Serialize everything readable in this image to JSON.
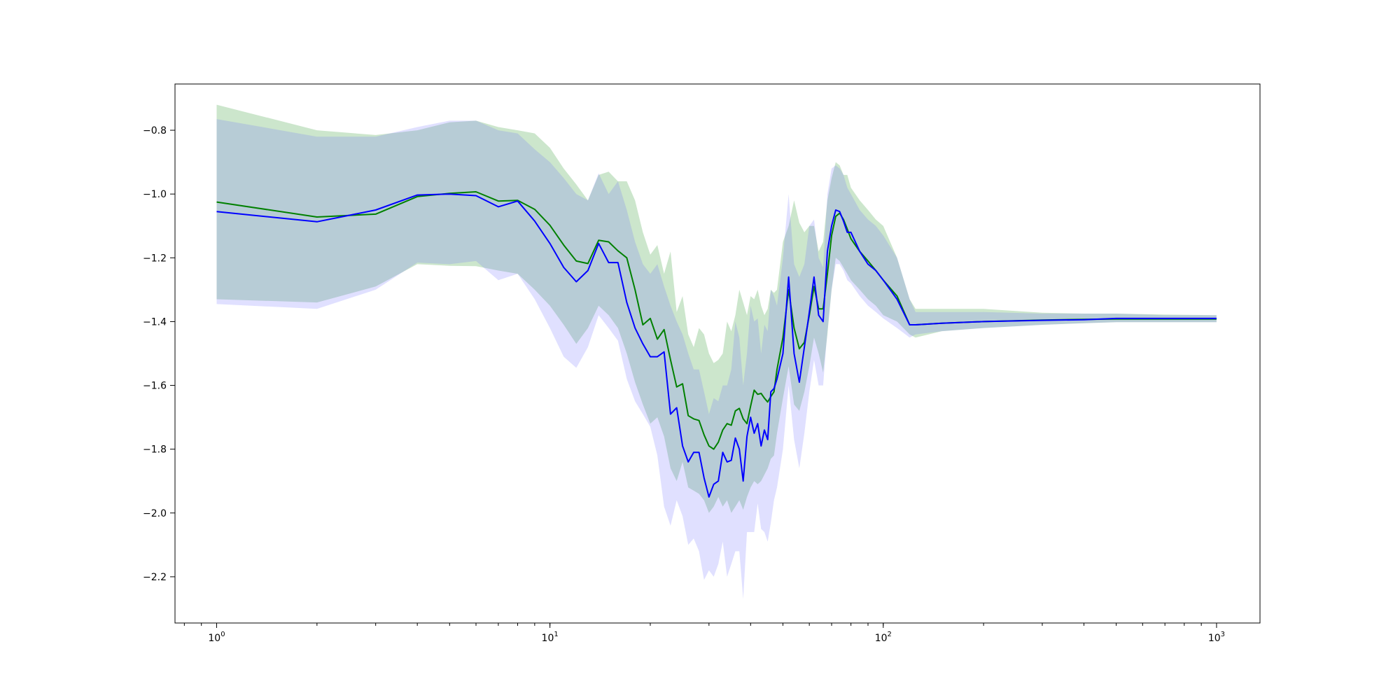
{
  "chart_data": {
    "type": "line",
    "xscale": "log",
    "xlim": [
      0.75,
      1350
    ],
    "ylim": [
      -2.345,
      -0.655
    ],
    "xticks": [
      {
        "value": 1,
        "base": "10",
        "exp": "0"
      },
      {
        "value": 10,
        "base": "10",
        "exp": "1"
      },
      {
        "value": 100,
        "base": "10",
        "exp": "2"
      },
      {
        "value": 1000,
        "base": "10",
        "exp": "3"
      }
    ],
    "yticks": [
      {
        "value": -0.8,
        "label": "−0.8"
      },
      {
        "value": -1.0,
        "label": "−1.0"
      },
      {
        "value": -1.2,
        "label": "−1.2"
      },
      {
        "value": -1.4,
        "label": "−1.4"
      },
      {
        "value": -1.6,
        "label": "−1.6"
      },
      {
        "value": -1.8,
        "label": "−1.8"
      },
      {
        "value": -2.0,
        "label": "−2.0"
      },
      {
        "value": -2.2,
        "label": "−2.2"
      }
    ],
    "grid": false,
    "series": [
      {
        "color": "#008000",
        "band_color": "#008000",
        "x": [
          1,
          2,
          3,
          4,
          5,
          6,
          7,
          8,
          9,
          10,
          11,
          12,
          13,
          14,
          15,
          16,
          17,
          18,
          19,
          20,
          21,
          22,
          23,
          24,
          25,
          26,
          27,
          28,
          29,
          30,
          31,
          32,
          33,
          34,
          35,
          36,
          37,
          38,
          39,
          40,
          41,
          42,
          43,
          44,
          45,
          46,
          47,
          48,
          50,
          52,
          54,
          56,
          58,
          60,
          62,
          64,
          66,
          68,
          70,
          72,
          74,
          76,
          78,
          80,
          85,
          90,
          95,
          100,
          110,
          120,
          125,
          150,
          200,
          300,
          400,
          500,
          700,
          1000
        ],
        "mean": [
          -1.025,
          -1.072,
          -1.063,
          -1.008,
          -0.998,
          -0.993,
          -1.022,
          -1.02,
          -1.048,
          -1.098,
          -1.16,
          -1.21,
          -1.218,
          -1.145,
          -1.15,
          -1.178,
          -1.2,
          -1.3,
          -1.41,
          -1.39,
          -1.455,
          -1.425,
          -1.52,
          -1.605,
          -1.595,
          -1.695,
          -1.705,
          -1.71,
          -1.755,
          -1.79,
          -1.8,
          -1.778,
          -1.74,
          -1.72,
          -1.725,
          -1.68,
          -1.672,
          -1.705,
          -1.72,
          -1.665,
          -1.615,
          -1.628,
          -1.625,
          -1.64,
          -1.652,
          -1.635,
          -1.62,
          -1.55,
          -1.45,
          -1.3,
          -1.42,
          -1.485,
          -1.465,
          -1.38,
          -1.29,
          -1.36,
          -1.36,
          -1.25,
          -1.13,
          -1.07,
          -1.06,
          -1.08,
          -1.11,
          -1.14,
          -1.18,
          -1.21,
          -1.24,
          -1.27,
          -1.32,
          -1.41,
          -1.41,
          -1.405,
          -1.4,
          -1.395,
          -1.393,
          -1.392,
          -1.392,
          -1.392
        ],
        "upper": [
          -0.72,
          -0.8,
          -0.815,
          -0.8,
          -0.775,
          -0.77,
          -0.79,
          -0.8,
          -0.81,
          -0.855,
          -0.92,
          -0.97,
          -1.02,
          -0.94,
          -0.93,
          -0.96,
          -0.96,
          -1.02,
          -1.12,
          -1.19,
          -1.16,
          -1.25,
          -1.18,
          -1.37,
          -1.32,
          -1.44,
          -1.48,
          -1.42,
          -1.44,
          -1.5,
          -1.53,
          -1.52,
          -1.5,
          -1.4,
          -1.43,
          -1.38,
          -1.3,
          -1.34,
          -1.38,
          -1.32,
          -1.33,
          -1.3,
          -1.35,
          -1.38,
          -1.36,
          -1.3,
          -1.31,
          -1.3,
          -1.15,
          -1.1,
          -1.02,
          -1.09,
          -1.12,
          -1.1,
          -1.1,
          -1.18,
          -1.15,
          -1.02,
          -0.95,
          -0.9,
          -0.91,
          -0.94,
          -0.94,
          -0.98,
          -1.02,
          -1.05,
          -1.08,
          -1.1,
          -1.2,
          -1.33,
          -1.36,
          -1.36,
          -1.36,
          -1.372,
          -1.375,
          -1.375,
          -1.378,
          -1.38
        ],
        "lower": [
          -1.33,
          -1.34,
          -1.29,
          -1.22,
          -1.225,
          -1.226,
          -1.24,
          -1.25,
          -1.3,
          -1.35,
          -1.41,
          -1.47,
          -1.42,
          -1.35,
          -1.38,
          -1.42,
          -1.5,
          -1.59,
          -1.66,
          -1.72,
          -1.7,
          -1.76,
          -1.86,
          -1.9,
          -1.84,
          -1.92,
          -1.93,
          -1.94,
          -1.96,
          -2.0,
          -1.98,
          -1.95,
          -1.98,
          -1.96,
          -2.0,
          -1.98,
          -1.96,
          -1.99,
          -1.95,
          -1.92,
          -1.9,
          -1.91,
          -1.9,
          -1.88,
          -1.86,
          -1.83,
          -1.82,
          -1.75,
          -1.64,
          -1.54,
          -1.66,
          -1.68,
          -1.62,
          -1.54,
          -1.45,
          -1.5,
          -1.56,
          -1.44,
          -1.3,
          -1.2,
          -1.21,
          -1.23,
          -1.25,
          -1.27,
          -1.3,
          -1.33,
          -1.35,
          -1.38,
          -1.4,
          -1.44,
          -1.45,
          -1.43,
          -1.42,
          -1.41,
          -1.405,
          -1.402,
          -1.402,
          -1.402
        ]
      },
      {
        "color": "#0000ff",
        "band_color": "#6666ff",
        "x": [
          1,
          2,
          3,
          4,
          5,
          6,
          7,
          8,
          9,
          10,
          11,
          12,
          13,
          14,
          15,
          16,
          17,
          18,
          19,
          20,
          21,
          22,
          23,
          24,
          25,
          26,
          27,
          28,
          29,
          30,
          31,
          32,
          33,
          34,
          35,
          36,
          37,
          38,
          39,
          40,
          41,
          42,
          43,
          44,
          45,
          46,
          47,
          48,
          50,
          52,
          54,
          56,
          58,
          60,
          62,
          64,
          66,
          68,
          70,
          72,
          74,
          76,
          78,
          80,
          85,
          90,
          95,
          100,
          110,
          120,
          125,
          150,
          200,
          300,
          400,
          500,
          700,
          1000
        ],
        "mean": [
          -1.055,
          -1.087,
          -1.05,
          -1.003,
          -1.0,
          -1.005,
          -1.04,
          -1.022,
          -1.085,
          -1.155,
          -1.23,
          -1.275,
          -1.24,
          -1.155,
          -1.215,
          -1.215,
          -1.34,
          -1.42,
          -1.47,
          -1.51,
          -1.51,
          -1.495,
          -1.69,
          -1.67,
          -1.79,
          -1.84,
          -1.81,
          -1.81,
          -1.89,
          -1.95,
          -1.91,
          -1.9,
          -1.81,
          -1.84,
          -1.835,
          -1.765,
          -1.8,
          -1.9,
          -1.76,
          -1.7,
          -1.75,
          -1.72,
          -1.79,
          -1.74,
          -1.77,
          -1.62,
          -1.61,
          -1.58,
          -1.5,
          -1.26,
          -1.5,
          -1.59,
          -1.48,
          -1.37,
          -1.26,
          -1.38,
          -1.4,
          -1.18,
          -1.1,
          -1.05,
          -1.055,
          -1.085,
          -1.12,
          -1.12,
          -1.18,
          -1.22,
          -1.24,
          -1.27,
          -1.33,
          -1.41,
          -1.41,
          -1.405,
          -1.4,
          -1.396,
          -1.394,
          -1.39,
          -1.39,
          -1.39
        ],
        "upper": [
          -0.765,
          -0.82,
          -0.82,
          -0.79,
          -0.77,
          -0.77,
          -0.8,
          -0.81,
          -0.86,
          -0.9,
          -0.95,
          -1.0,
          -1.02,
          -0.935,
          -1.0,
          -0.96,
          -1.05,
          -1.15,
          -1.22,
          -1.25,
          -1.22,
          -1.29,
          -1.35,
          -1.4,
          -1.44,
          -1.5,
          -1.55,
          -1.55,
          -1.62,
          -1.69,
          -1.64,
          -1.65,
          -1.6,
          -1.6,
          -1.55,
          -1.4,
          -1.45,
          -1.6,
          -1.5,
          -1.35,
          -1.4,
          -1.39,
          -1.5,
          -1.41,
          -1.43,
          -1.3,
          -1.32,
          -1.35,
          -1.2,
          -1.0,
          -1.22,
          -1.26,
          -1.22,
          -1.1,
          -1.08,
          -1.2,
          -1.23,
          -1.0,
          -0.92,
          -0.91,
          -0.92,
          -0.94,
          -0.98,
          -1.0,
          -1.05,
          -1.08,
          -1.1,
          -1.13,
          -1.2,
          -1.33,
          -1.37,
          -1.37,
          -1.37,
          -1.375,
          -1.375,
          -1.375,
          -1.38,
          -1.38
        ],
        "lower": [
          -1.345,
          -1.36,
          -1.3,
          -1.215,
          -1.22,
          -1.21,
          -1.27,
          -1.25,
          -1.33,
          -1.42,
          -1.51,
          -1.545,
          -1.48,
          -1.38,
          -1.42,
          -1.46,
          -1.58,
          -1.65,
          -1.69,
          -1.73,
          -1.82,
          -1.98,
          -2.04,
          -1.96,
          -2.01,
          -2.1,
          -2.08,
          -2.12,
          -2.21,
          -2.18,
          -2.2,
          -2.16,
          -2.09,
          -2.2,
          -2.16,
          -2.12,
          -2.12,
          -2.27,
          -2.06,
          -2.06,
          -2.06,
          -1.97,
          -2.05,
          -2.06,
          -2.09,
          -2.03,
          -1.96,
          -1.92,
          -1.8,
          -1.6,
          -1.77,
          -1.86,
          -1.75,
          -1.62,
          -1.52,
          -1.6,
          -1.6,
          -1.43,
          -1.3,
          -1.22,
          -1.22,
          -1.24,
          -1.27,
          -1.28,
          -1.32,
          -1.35,
          -1.37,
          -1.39,
          -1.42,
          -1.45,
          -1.44,
          -1.43,
          -1.42,
          -1.41,
          -1.405,
          -1.402,
          -1.402,
          -1.402
        ]
      }
    ]
  }
}
